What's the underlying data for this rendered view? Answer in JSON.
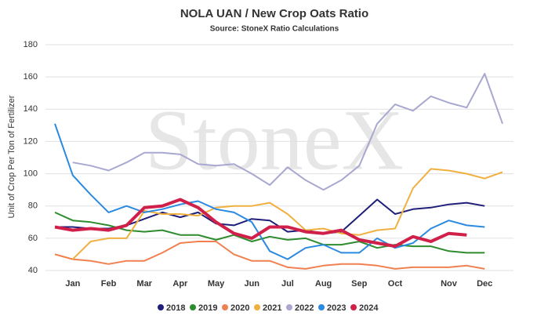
{
  "chart_data": {
    "type": "line",
    "title": "NOLA UAN / New Crop Oats Ratio",
    "subtitle": "Source: StoneX Ratio Calculations",
    "watermark": "StoneX",
    "y_label": "Unit of Crop Per Ton of Fertilizer",
    "categories": [
      null,
      "Jan",
      null,
      "Feb",
      null,
      "Mar",
      null,
      "Apr",
      null,
      "May",
      null,
      "Jun",
      null,
      "Jul",
      null,
      "Aug",
      null,
      "Sep",
      null,
      "Oct",
      null,
      null,
      "Nov",
      null,
      "Dec",
      null
    ],
    "ylim": [
      40,
      180
    ],
    "yticks": [
      40,
      60,
      80,
      100,
      120,
      140,
      160,
      180
    ],
    "grid": true,
    "legend": "bottom",
    "series": [
      {
        "name": "2018",
        "color": "#1f1f7a",
        "values": [
          67,
          67,
          66,
          66,
          68,
          72,
          76,
          73,
          76,
          69,
          68,
          72,
          71,
          64,
          65,
          63,
          64,
          74,
          84,
          75,
          78,
          79,
          81,
          82,
          80,
          null
        ]
      },
      {
        "name": "2019",
        "color": "#2e8b2e",
        "values": [
          76,
          71,
          70,
          68,
          65,
          64,
          65,
          62,
          62,
          59,
          62,
          58,
          61,
          59,
          60,
          56,
          56,
          58,
          54,
          56,
          55,
          55,
          52,
          51,
          51,
          null
        ]
      },
      {
        "name": "2020",
        "color": "#f08050",
        "values": [
          50,
          47,
          46,
          44,
          46,
          46,
          51,
          57,
          58,
          58,
          50,
          46,
          46,
          42,
          41,
          43,
          44,
          44,
          43,
          41,
          42,
          42,
          42,
          43,
          41,
          null
        ]
      },
      {
        "name": "2021",
        "color": "#f0b040",
        "values": [
          null,
          47,
          58,
          60,
          60,
          77,
          75,
          75,
          74,
          79,
          80,
          80,
          82,
          75,
          65,
          66,
          63,
          62,
          65,
          66,
          91,
          103,
          102,
          100,
          97,
          101
        ]
      },
      {
        "name": "2022",
        "color": "#a8a8d0",
        "values": [
          null,
          107,
          105,
          102,
          107,
          113,
          113,
          112,
          106,
          105,
          106,
          100,
          93,
          104,
          96,
          90,
          96,
          105,
          131,
          143,
          139,
          148,
          144,
          141,
          162,
          131
        ]
      },
      {
        "name": "2023",
        "color": "#2a8ae0",
        "values": [
          131,
          99,
          87,
          76,
          80,
          76,
          78,
          81,
          83,
          78,
          76,
          70,
          52,
          47,
          54,
          56,
          51,
          51,
          60,
          54,
          57,
          66,
          71,
          68,
          67,
          null
        ]
      },
      {
        "name": "2024",
        "color": "#d0204a",
        "values": [
          67,
          65,
          66,
          65,
          68,
          79,
          80,
          84,
          79,
          70,
          63,
          60,
          67,
          67,
          64,
          63,
          65,
          59,
          57,
          55,
          61,
          58,
          63,
          62,
          null,
          null
        ]
      }
    ]
  }
}
